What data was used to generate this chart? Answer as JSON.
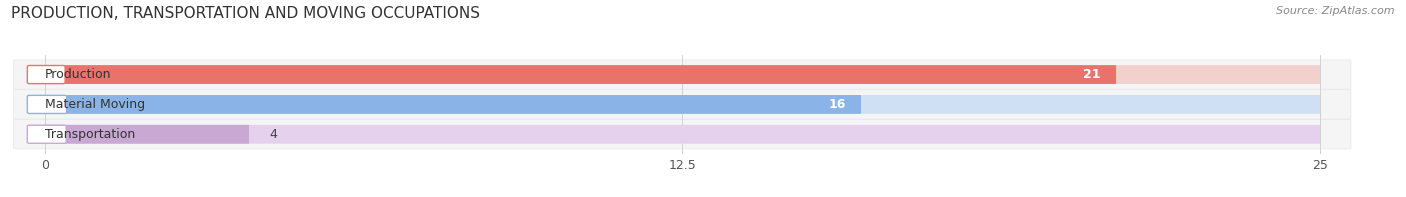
{
  "title": "PRODUCTION, TRANSPORTATION AND MOVING OCCUPATIONS",
  "source": "Source: ZipAtlas.com",
  "categories": [
    "Production",
    "Material Moving",
    "Transportation"
  ],
  "values": [
    21,
    16,
    4
  ],
  "bar_colors": [
    "#e8736a",
    "#8ab4e8",
    "#c9a8d4"
  ],
  "bar_bg_colors": [
    "#f2d0cc",
    "#cfe0f5",
    "#e5d0ed"
  ],
  "xlim": [
    0,
    25
  ],
  "xticks": [
    0,
    12.5,
    25
  ],
  "bar_height": 0.62,
  "figsize": [
    14.06,
    1.97
  ],
  "dpi": 100,
  "title_fontsize": 11,
  "label_fontsize": 9,
  "value_fontsize": 9,
  "tick_fontsize": 9,
  "background_color": "#ffffff"
}
